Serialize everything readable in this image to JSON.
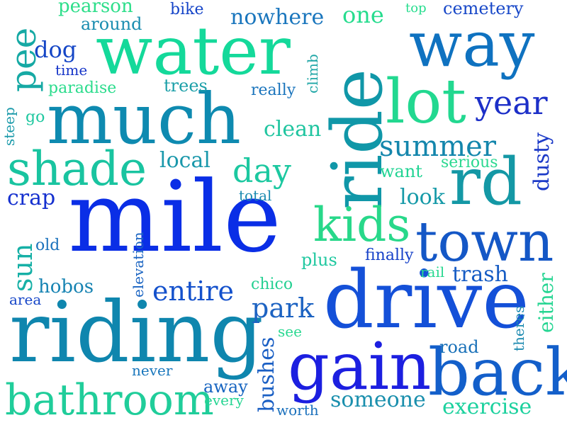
{
  "words": [
    {
      "text": "mile",
      "color": "#0a2ee6",
      "orientation": "horizontal"
    },
    {
      "text": "water",
      "color": "#14d99a",
      "orientation": "horizontal"
    },
    {
      "text": "much",
      "color": "#0e8ab0",
      "orientation": "horizontal"
    },
    {
      "text": "riding",
      "color": "#0f86ae",
      "orientation": "horizontal"
    },
    {
      "text": "drive",
      "color": "#1450d8",
      "orientation": "horizontal"
    },
    {
      "text": "ride",
      "color": "#1097a8",
      "orientation": "vertical"
    },
    {
      "text": "way",
      "color": "#0f72c0",
      "orientation": "horizontal"
    },
    {
      "text": "lot",
      "color": "#22d890",
      "orientation": "horizontal"
    },
    {
      "text": "gain",
      "color": "#1c1fe0",
      "orientation": "horizontal"
    },
    {
      "text": "back",
      "color": "#135fca",
      "orientation": "horizontal"
    },
    {
      "text": "town",
      "color": "#1457c6",
      "orientation": "horizontal"
    },
    {
      "text": "rd",
      "color": "#1498a5",
      "orientation": "horizontal"
    },
    {
      "text": "shade",
      "color": "#19c4a0",
      "orientation": "horizontal"
    },
    {
      "text": "bathroom",
      "color": "#20cd9a",
      "orientation": "horizontal"
    },
    {
      "text": "kids",
      "color": "#28d88a",
      "orientation": "horizontal"
    },
    {
      "text": "pee",
      "color": "#16a9a4",
      "orientation": "vertical"
    },
    {
      "text": "year",
      "color": "#1c2fc8",
      "orientation": "horizontal"
    },
    {
      "text": "summer",
      "color": "#1486ac",
      "orientation": "horizontal"
    },
    {
      "text": "entire",
      "color": "#1451cc",
      "orientation": "horizontal"
    },
    {
      "text": "park",
      "color": "#1d63c2",
      "orientation": "horizontal"
    },
    {
      "text": "day",
      "color": "#1cc8a0",
      "orientation": "horizontal"
    },
    {
      "text": "sun",
      "color": "#16b0a6",
      "orientation": "vertical"
    },
    {
      "text": "exercise",
      "color": "#1cd19e",
      "orientation": "horizontal"
    },
    {
      "text": "someone",
      "color": "#1a8fad",
      "orientation": "horizontal"
    },
    {
      "text": "nowhere",
      "color": "#1a76bd",
      "orientation": "horizontal"
    },
    {
      "text": "one",
      "color": "#26dc8e",
      "orientation": "horizontal"
    },
    {
      "text": "pearson",
      "color": "#2dde8a",
      "orientation": "horizontal"
    },
    {
      "text": "dog",
      "color": "#1546c6",
      "orientation": "horizontal"
    },
    {
      "text": "crap",
      "color": "#1530cf",
      "orientation": "horizontal"
    },
    {
      "text": "clean",
      "color": "#20c5a0",
      "orientation": "horizontal"
    },
    {
      "text": "local",
      "color": "#1a98ab",
      "orientation": "horizontal"
    },
    {
      "text": "look",
      "color": "#169aa8",
      "orientation": "horizontal"
    },
    {
      "text": "trash",
      "color": "#165cc4",
      "orientation": "horizontal"
    },
    {
      "text": "want",
      "color": "#22d494",
      "orientation": "horizontal"
    },
    {
      "text": "dusty",
      "color": "#1d3bc8",
      "orientation": "vertical"
    },
    {
      "text": "hobos",
      "color": "#1683b2",
      "orientation": "horizontal"
    },
    {
      "text": "either",
      "color": "#25d592",
      "orientation": "vertical"
    },
    {
      "text": "bushes",
      "color": "#1a5fc4",
      "orientation": "vertical"
    },
    {
      "text": "road",
      "color": "#1870b8",
      "orientation": "horizontal"
    },
    {
      "text": "away",
      "color": "#1664c0",
      "orientation": "horizontal"
    },
    {
      "text": "around",
      "color": "#1a8db0",
      "orientation": "horizontal"
    },
    {
      "text": "cemetery",
      "color": "#1848c8",
      "orientation": "horizontal"
    },
    {
      "text": "bike",
      "color": "#1544c8",
      "orientation": "horizontal"
    },
    {
      "text": "top",
      "color": "#26dd8e",
      "orientation": "horizontal"
    },
    {
      "text": "time",
      "color": "#1534c8",
      "orientation": "horizontal"
    },
    {
      "text": "paradise",
      "color": "#2adc8c",
      "orientation": "horizontal"
    },
    {
      "text": "trees",
      "color": "#1b9fa8",
      "orientation": "horizontal"
    },
    {
      "text": "really",
      "color": "#1a74bc",
      "orientation": "horizontal"
    },
    {
      "text": "climb",
      "color": "#1ea6a6",
      "orientation": "vertical"
    },
    {
      "text": "steep",
      "color": "#1b9aaa",
      "orientation": "vertical"
    },
    {
      "text": "go",
      "color": "#20c8a0",
      "orientation": "horizontal"
    },
    {
      "text": "serious",
      "color": "#2ad890",
      "orientation": "horizontal"
    },
    {
      "text": "total",
      "color": "#1a8ab0",
      "orientation": "horizontal"
    },
    {
      "text": "old",
      "color": "#1b72bc",
      "orientation": "horizontal"
    },
    {
      "text": "elevation",
      "color": "#1a64c2",
      "orientation": "vertical"
    },
    {
      "text": "plus",
      "color": "#20c8a0",
      "orientation": "horizontal"
    },
    {
      "text": "finally",
      "color": "#1540c8",
      "orientation": "horizontal"
    },
    {
      "text": "rail",
      "color": "#28d890",
      "orientation": "horizontal"
    },
    {
      "text": "chico",
      "color": "#25d092",
      "orientation": "horizontal"
    },
    {
      "text": "area",
      "color": "#1545c8",
      "orientation": "horizontal"
    },
    {
      "text": "theres",
      "color": "#1c8ab0",
      "orientation": "vertical"
    },
    {
      "text": "see",
      "color": "#28d890",
      "orientation": "horizontal"
    },
    {
      "text": "never",
      "color": "#1876bc",
      "orientation": "horizontal"
    },
    {
      "text": "every",
      "color": "#25d592",
      "orientation": "horizontal"
    },
    {
      "text": "worth",
      "color": "#1a70bc",
      "orientation": "horizontal"
    }
  ]
}
